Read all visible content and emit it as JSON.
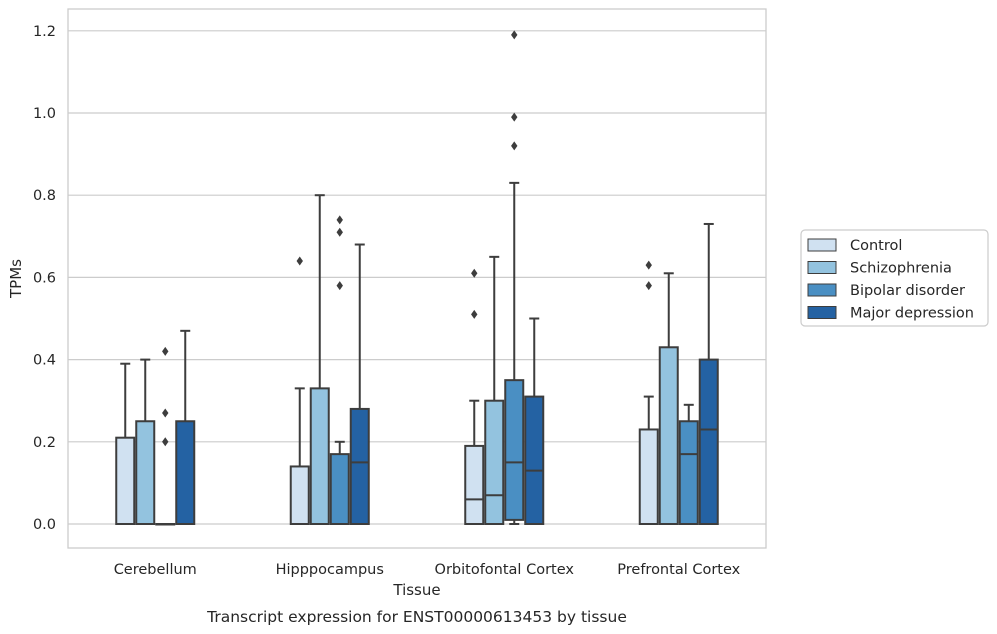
{
  "chart_data": {
    "type": "box",
    "title": "",
    "xlabel": "Tissue",
    "ylabel": "TPMs",
    "caption": "Transcript expression for ENST00000613453 by tissue",
    "ylim": [
      -0.06,
      1.25
    ],
    "yticks": [
      0.0,
      0.2,
      0.4,
      0.6,
      0.8,
      1.0,
      1.2
    ],
    "ytick_labels": [
      "0.0",
      "0.2",
      "0.4",
      "0.6",
      "0.8",
      "1.0",
      "1.2"
    ],
    "grid": "horizontal",
    "legend_position": "right",
    "categories": [
      "Cerebellum",
      "Hipppocampus",
      "Orbitofontal Cortex",
      "Prefrontal Cortex"
    ],
    "series": [
      {
        "name": "Control",
        "color": "#d0e1f1",
        "boxes": [
          {
            "q1": 0.0,
            "median": 0.0,
            "q3": 0.21,
            "whisker_low": 0.0,
            "whisker_high": 0.39,
            "outliers": []
          },
          {
            "q1": 0.0,
            "median": 0.0,
            "q3": 0.14,
            "whisker_low": 0.0,
            "whisker_high": 0.33,
            "outliers": [
              0.64
            ]
          },
          {
            "q1": 0.0,
            "median": 0.06,
            "q3": 0.19,
            "whisker_low": 0.0,
            "whisker_high": 0.3,
            "outliers": [
              0.51,
              0.61
            ]
          },
          {
            "q1": 0.0,
            "median": 0.0,
            "q3": 0.23,
            "whisker_low": 0.0,
            "whisker_high": 0.31,
            "outliers": [
              0.58,
              0.63
            ]
          }
        ]
      },
      {
        "name": "Schizophrenia",
        "color": "#93c3df",
        "boxes": [
          {
            "q1": 0.0,
            "median": 0.0,
            "q3": 0.25,
            "whisker_low": 0.0,
            "whisker_high": 0.4,
            "outliers": []
          },
          {
            "q1": 0.0,
            "median": 0.0,
            "q3": 0.33,
            "whisker_low": 0.0,
            "whisker_high": 0.8,
            "outliers": []
          },
          {
            "q1": 0.0,
            "median": 0.07,
            "q3": 0.3,
            "whisker_low": 0.0,
            "whisker_high": 0.65,
            "outliers": []
          },
          {
            "q1": 0.0,
            "median": 0.0,
            "q3": 0.43,
            "whisker_low": 0.0,
            "whisker_high": 0.61,
            "outliers": []
          }
        ]
      },
      {
        "name": "Bipolar disorder",
        "color": "#4a8fc3",
        "boxes": [
          {
            "q1": 0.0,
            "median": 0.0,
            "q3": 0.0,
            "whisker_low": 0.0,
            "whisker_high": 0.0,
            "outliers": [
              0.2,
              0.27,
              0.42
            ]
          },
          {
            "q1": 0.0,
            "median": 0.0,
            "q3": 0.17,
            "whisker_low": 0.0,
            "whisker_high": 0.2,
            "outliers": [
              0.58,
              0.71,
              0.74
            ]
          },
          {
            "q1": 0.01,
            "median": 0.15,
            "q3": 0.35,
            "whisker_low": 0.0,
            "whisker_high": 0.83,
            "outliers": [
              0.92,
              0.99,
              1.19
            ]
          },
          {
            "q1": 0.0,
            "median": 0.17,
            "q3": 0.25,
            "whisker_low": 0.0,
            "whisker_high": 0.29,
            "outliers": []
          }
        ]
      },
      {
        "name": "Major depression",
        "color": "#2462a3",
        "boxes": [
          {
            "q1": 0.0,
            "median": 0.0,
            "q3": 0.25,
            "whisker_low": 0.0,
            "whisker_high": 0.47,
            "outliers": []
          },
          {
            "q1": 0.0,
            "median": 0.15,
            "q3": 0.28,
            "whisker_low": 0.0,
            "whisker_high": 0.68,
            "outliers": []
          },
          {
            "q1": 0.0,
            "median": 0.13,
            "q3": 0.31,
            "whisker_low": 0.0,
            "whisker_high": 0.5,
            "outliers": []
          },
          {
            "q1": 0.0,
            "median": 0.23,
            "q3": 0.4,
            "whisker_low": 0.0,
            "whisker_high": 0.73,
            "outliers": []
          }
        ]
      }
    ]
  }
}
